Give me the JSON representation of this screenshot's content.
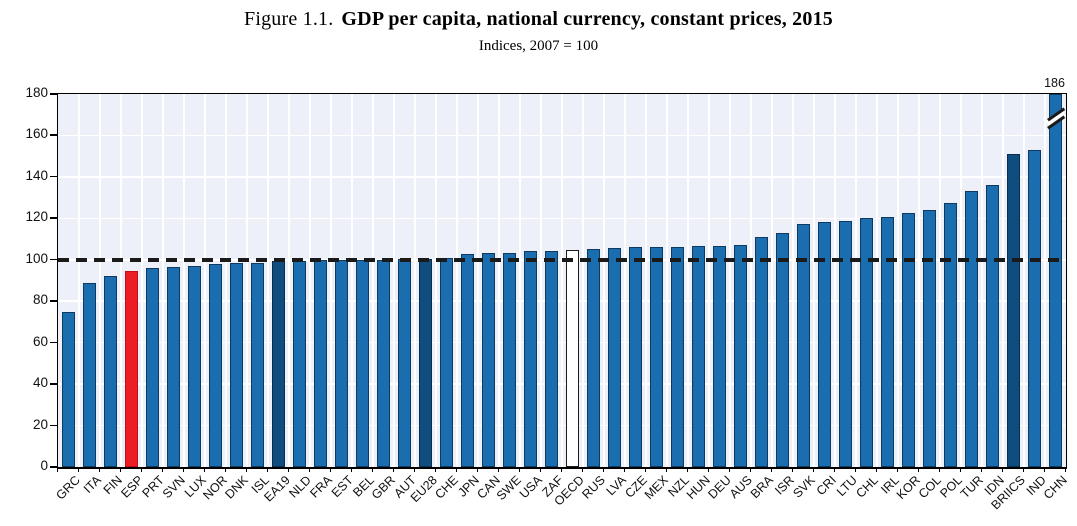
{
  "figure": {
    "title_prefix": "Figure 1.1.",
    "title": "GDP per capita, national currency, constant prices, 2015",
    "subtitle": "Indices, 2007 = 100"
  },
  "colors": {
    "plot_background": "#edf0f8",
    "gridline": "#ffffff",
    "axis": "#000000",
    "text": "#111111",
    "reference_line": "#1a1a1a",
    "bar_default": "#1a6dae",
    "border_default": "#0f3a5f",
    "bar_aggregate": "#0e4d7d",
    "border_aggregate": "#092f4e",
    "bar_highlight": "#ee1c25",
    "border_highlight": "#c00f16",
    "bar_outline": "#ffffff",
    "border_outline": "#1a1a1a"
  },
  "chart_data": {
    "type": "bar",
    "title": "Figure 1.1. GDP per capita, national currency, constant prices, 2015",
    "subtitle": "Indices, 2007 = 100",
    "xlabel": "",
    "ylabel": "",
    "ylim": [
      0,
      180
    ],
    "yticks": [
      0,
      20,
      40,
      60,
      80,
      100,
      120,
      140,
      160,
      180
    ],
    "grid": true,
    "reference_line_y": 100,
    "legend": "none",
    "categories": [
      "GRC",
      "ITA",
      "FIN",
      "ESP",
      "PRT",
      "SVN",
      "LUX",
      "NOR",
      "DNK",
      "ISL",
      "EA19",
      "NLD",
      "FRA",
      "EST",
      "BEL",
      "GBR",
      "AUT",
      "EU28",
      "CHE",
      "JPN",
      "CAN",
      "SWE",
      "USA",
      "ZAF",
      "OECD",
      "RUS",
      "LVA",
      "CZE",
      "MEX",
      "NZL",
      "HUN",
      "DEU",
      "AUS",
      "BRA",
      "ISR",
      "SVK",
      "CRI",
      "LTU",
      "CHL",
      "IRL",
      "KOR",
      "COL",
      "POL",
      "TUR",
      "IDN",
      "BRIICS",
      "IND",
      "CHN"
    ],
    "values": [
      75,
      89,
      92,
      94.5,
      96,
      96.5,
      97,
      98,
      98.5,
      98.5,
      99.5,
      99.5,
      100,
      100,
      100,
      100,
      100.5,
      100.5,
      101,
      103,
      103.5,
      103.5,
      104,
      104,
      104.5,
      105,
      105.5,
      106,
      106,
      106,
      106.5,
      106.5,
      107,
      111,
      113,
      117.5,
      118,
      118.5,
      120,
      120.5,
      122.5,
      124,
      127.5,
      133,
      136,
      151,
      153,
      186
    ],
    "bar_styles": [
      "default",
      "default",
      "default",
      "highlight",
      "default",
      "default",
      "default",
      "default",
      "default",
      "default",
      "aggregate",
      "default",
      "default",
      "default",
      "default",
      "default",
      "default",
      "aggregate",
      "default",
      "default",
      "default",
      "default",
      "default",
      "default",
      "outline",
      "default",
      "default",
      "default",
      "default",
      "default",
      "default",
      "default",
      "default",
      "default",
      "default",
      "default",
      "default",
      "default",
      "default",
      "default",
      "default",
      "default",
      "default",
      "default",
      "default",
      "aggregate",
      "default",
      "default"
    ],
    "truncated_bar": {
      "category": "CHN",
      "display_cap": 180,
      "value_label": "186",
      "break_mark_at": 168
    }
  }
}
